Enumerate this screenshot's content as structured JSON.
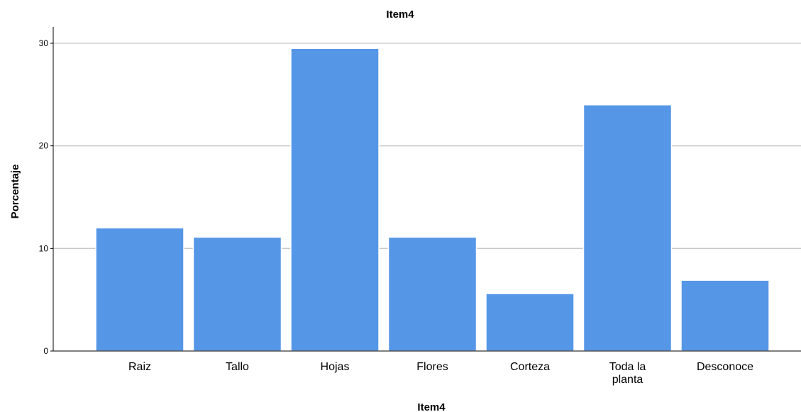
{
  "chart_data": {
    "type": "bar",
    "title": "Item4",
    "xlabel": "Item4",
    "ylabel": "Porcentaje",
    "categories": [
      "Raiz",
      "Tallo",
      "Hojas",
      "Flores",
      "Corteza",
      "Toda la planta",
      "Desconoce"
    ],
    "category_lines": [
      [
        "Raiz"
      ],
      [
        "Tallo"
      ],
      [
        "Hojas"
      ],
      [
        "Flores"
      ],
      [
        "Corteza"
      ],
      [
        "Toda la",
        "planta"
      ],
      [
        "Desconoce"
      ]
    ],
    "values": [
      12.0,
      11.1,
      29.5,
      11.1,
      5.6,
      24.0,
      6.9
    ],
    "ylim": [
      0,
      30
    ],
    "yticks": [
      "0",
      "10",
      "20",
      "30"
    ],
    "grid": true,
    "bar_color": "#5596e6"
  }
}
